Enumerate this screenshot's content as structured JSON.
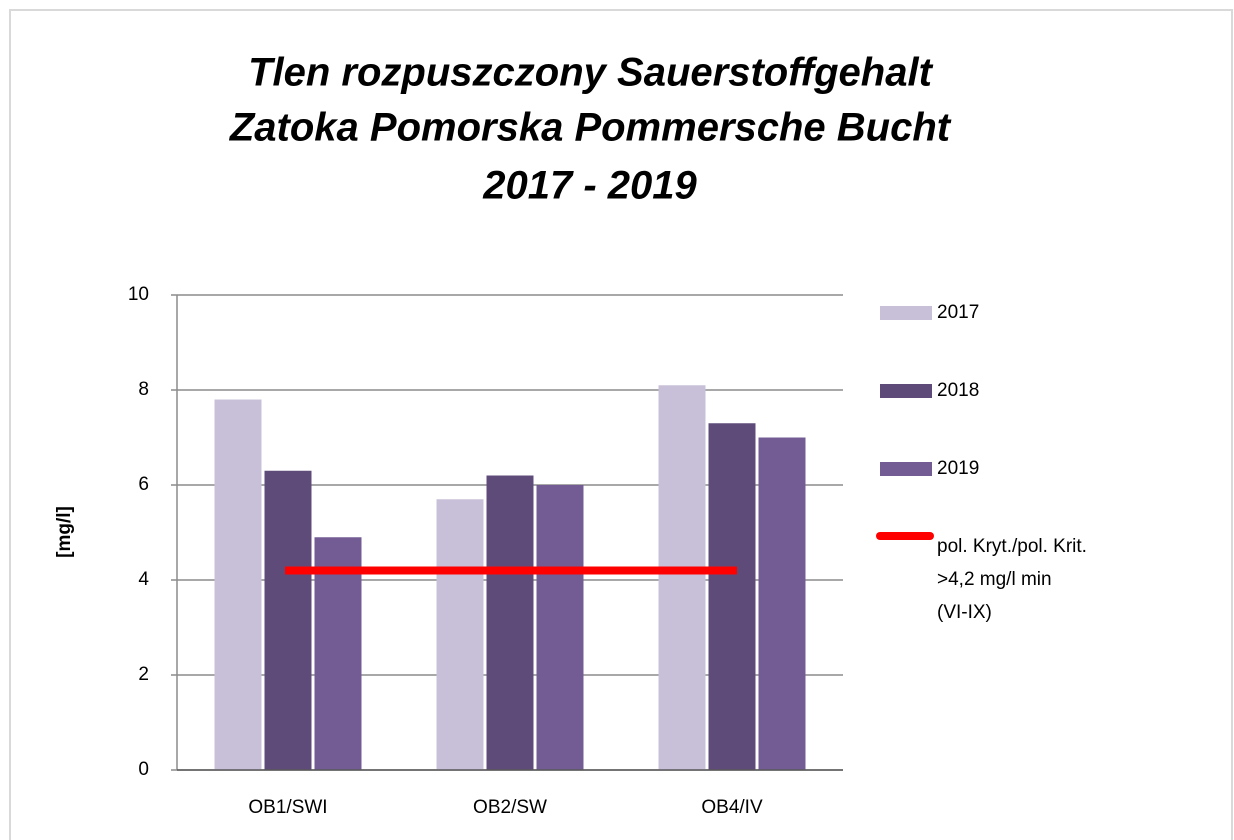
{
  "chart_data": {
    "type": "bar",
    "title": [
      "Tlen rozpuszczony  Sauerstoffgehalt",
      "Zatoka Pomorska  Pommersche Bucht",
      "2017 - 2019"
    ],
    "y_label": "[mg/l]",
    "categories": [
      "OB1/SWI",
      "OB2/SW",
      "OB4/IV"
    ],
    "series": [
      {
        "name": "2017",
        "color": "#c8c0d8",
        "values": [
          7.8,
          5.7,
          8.1
        ]
      },
      {
        "name": "2018",
        "color": "#5f4b7a",
        "values": [
          6.3,
          6.2,
          7.3
        ]
      },
      {
        "name": "2019",
        "color": "#735c93",
        "values": [
          4.9,
          6.0,
          7.0
        ]
      },
      {
        "name": "pol. Kryt./pol. Krit. >4,2 mg/l min (VI-IX)",
        "type": "line",
        "color": "#ff0000",
        "values": [
          4.2,
          4.2,
          4.2
        ]
      }
    ],
    "ylim": [
      0,
      10
    ],
    "yticks": [
      0,
      2,
      4,
      6,
      8,
      10
    ],
    "grid": true,
    "legend": "right"
  }
}
